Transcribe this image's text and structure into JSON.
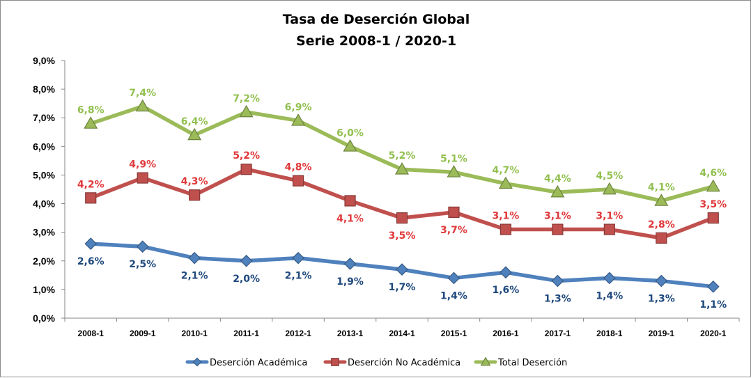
{
  "chart_data": {
    "type": "line",
    "title": "Tasa de Deserción Global",
    "subtitle": "Serie 2008-1 / 2020-1",
    "categories": [
      "2008-1",
      "2009-1",
      "2010-1",
      "2011-1",
      "2012-1",
      "2013-1",
      "2014-1",
      "2015-1",
      "2016-1",
      "2017-1",
      "2018-1",
      "2019-1",
      "2020-1"
    ],
    "y_ticks": [
      "0,0%",
      "1,0%",
      "2,0%",
      "3,0%",
      "4,0%",
      "5,0%",
      "6,0%",
      "7,0%",
      "8,0%",
      "9,0%"
    ],
    "ylim": [
      0,
      9
    ],
    "grid": false,
    "legend_position": "bottom",
    "series": [
      {
        "name": "Deserción Académica",
        "color": "#4f81bd",
        "label_color": "#1f497d",
        "marker": "diamond",
        "label_position": "below",
        "values": [
          2.6,
          2.5,
          2.1,
          2.0,
          2.1,
          1.9,
          1.7,
          1.4,
          1.6,
          1.3,
          1.4,
          1.3,
          1.1
        ],
        "labels": [
          "2,6%",
          "2,5%",
          "2,1%",
          "2,0%",
          "2,1%",
          "1,9%",
          "1,7%",
          "1,4%",
          "1,6%",
          "1,3%",
          "1,4%",
          "1,3%",
          "1,1%"
        ]
      },
      {
        "name": "Deserción No Académica",
        "color": "#c0504d",
        "label_color": "#e0383a",
        "marker": "square",
        "label_position": "mixed",
        "values": [
          4.2,
          4.9,
          4.3,
          5.2,
          4.8,
          4.1,
          3.5,
          3.7,
          3.1,
          3.1,
          3.1,
          2.8,
          3.5
        ],
        "labels": [
          "4,2%",
          "4,9%",
          "4,3%",
          "5,2%",
          "4,8%",
          "4,1%",
          "3,5%",
          "3,7%",
          "3,1%",
          "3,1%",
          "3,1%",
          "2,8%",
          "3,5%"
        ],
        "label_above": [
          true,
          true,
          true,
          true,
          true,
          false,
          false,
          false,
          true,
          true,
          true,
          true,
          true
        ]
      },
      {
        "name": "Total Deserción",
        "color": "#9bbb59",
        "label_color": "#92c050",
        "marker": "triangle",
        "label_position": "above",
        "values": [
          6.8,
          7.4,
          6.4,
          7.2,
          6.9,
          6.0,
          5.2,
          5.1,
          4.7,
          4.4,
          4.5,
          4.1,
          4.6
        ],
        "labels": [
          "6,8%",
          "7,4%",
          "6,4%",
          "7,2%",
          "6,9%",
          "6,0%",
          "5,2%",
          "5,1%",
          "4,7%",
          "4,4%",
          "4,5%",
          "4,1%",
          "4,6%"
        ]
      }
    ]
  }
}
